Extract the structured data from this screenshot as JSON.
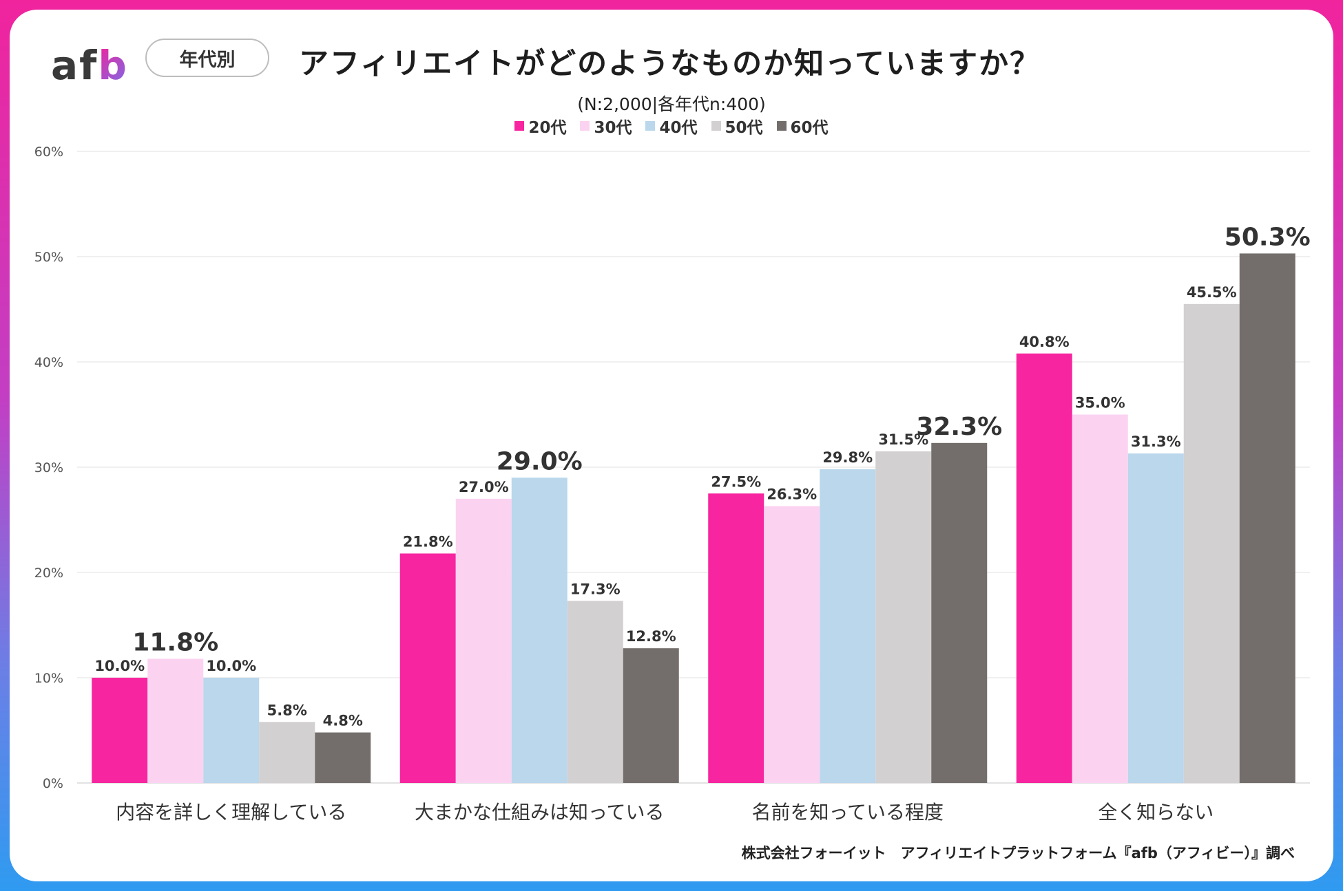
{
  "brand": {
    "logo_text_a": "af",
    "logo_text_b": "b",
    "tag": "年代別"
  },
  "header": {
    "title": "アフィリエイトがどのようなものか知っていますか？",
    "subtitle": "(N:2,000|各年代n:400)"
  },
  "credit": "株式会社フォーイット　アフィリエイトプラットフォーム『afb（アフィビー）』調べ",
  "chart_data": {
    "type": "bar",
    "title": "アフィリエイトがどのようなものか知っていますか？",
    "categories": [
      "内容を詳しく理解している",
      "大まかな仕組みは知っている",
      "名前を知っている程度",
      "全く知らない"
    ],
    "series": [
      {
        "name": "20代",
        "color": "#f7259f",
        "values": [
          10.0,
          21.8,
          27.5,
          40.8
        ],
        "labels": [
          "10.0%",
          "21.8%",
          "27.5%",
          "40.8%"
        ]
      },
      {
        "name": "30代",
        "color": "#fbd3f1",
        "values": [
          11.8,
          27.0,
          26.3,
          35.0
        ],
        "labels": [
          "11.8%",
          "27.0%",
          "26.3%",
          "35.0%"
        ]
      },
      {
        "name": "40代",
        "color": "#bad7ec",
        "values": [
          10.0,
          29.0,
          29.8,
          31.3
        ],
        "labels": [
          "10.0%",
          "29.0%",
          "29.8%",
          "31.3%"
        ]
      },
      {
        "name": "50代",
        "color": "#d3d0d1",
        "values": [
          5.8,
          17.3,
          31.5,
          45.5
        ],
        "labels": [
          "5.8%",
          "17.3%",
          "31.5%",
          "45.5%"
        ]
      },
      {
        "name": "60代",
        "color": "#736e6b",
        "values": [
          4.8,
          12.8,
          32.3,
          50.3
        ],
        "labels": [
          "4.8%",
          "12.8%",
          "32.3%",
          "50.3%"
        ]
      }
    ],
    "highlights": [
      {
        "category": 0,
        "series": 1,
        "color": "#e7a6e0"
      },
      {
        "category": 1,
        "series": 2,
        "color": "#5f93c6"
      },
      {
        "category": 2,
        "series": 4,
        "color": "#3a3a3a"
      },
      {
        "category": 3,
        "series": 4,
        "color": "#3a3a3a"
      }
    ],
    "yticks": [
      "0%",
      "10%",
      "20%",
      "30%",
      "40%",
      "50%",
      "60%"
    ],
    "ylim": [
      0,
      60
    ],
    "grid": true,
    "legend": "top-center"
  }
}
